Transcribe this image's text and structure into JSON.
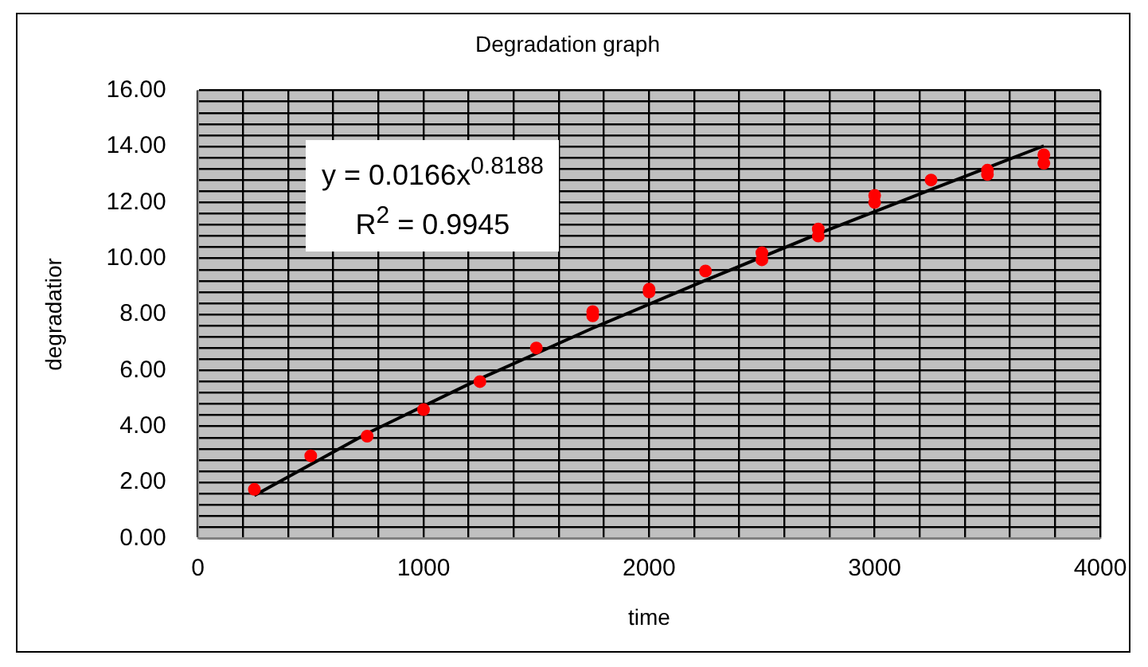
{
  "chart_data": {
    "type": "scatter",
    "title": "Degradation graph",
    "xlabel": "time",
    "ylabel": "degradatior",
    "series": [
      {
        "type": "scatter",
        "color": "#ff0000",
        "marker": "circle",
        "x": [
          250,
          500,
          750,
          1000,
          1250,
          1500,
          1750,
          1750,
          2000,
          2000,
          2250,
          2500,
          2500,
          2750,
          2750,
          3000,
          3000,
          3250,
          3500,
          3500,
          3750,
          3750
        ],
        "values": [
          1.75,
          2.95,
          3.65,
          4.6,
          5.6,
          6.8,
          7.95,
          8.1,
          8.8,
          8.9,
          9.55,
          9.95,
          10.2,
          10.8,
          11.05,
          12.0,
          12.25,
          12.8,
          13.0,
          13.15,
          13.4,
          13.7
        ]
      },
      {
        "type": "line",
        "color": "#000000",
        "marker": "none",
        "line_style": "solid",
        "x": [
          250,
          750,
          1250,
          1750,
          2250,
          2750,
          3250,
          3750
        ],
        "values": [
          1.53,
          3.75,
          5.7,
          7.51,
          9.22,
          10.88,
          12.46,
          14.02
        ]
      }
    ],
    "annotations": [
      "y = 0.0166x$^{0.8188}$",
      "R$^{2}$ = 0.9945"
    ],
    "xlim": [
      0,
      4000
    ],
    "xticks": [
      0,
      {
        "value": 200,
        "label": null
      },
      {
        "value": 400,
        "label": null
      },
      {
        "value": 600,
        "label": null
      },
      {
        "value": 800,
        "label": null
      },
      1000,
      {
        "value": 1200,
        "label": null
      },
      {
        "value": 1400,
        "label": null
      },
      {
        "value": 1600,
        "label": null
      },
      {
        "value": 1800,
        "label": null
      },
      2000,
      {
        "value": 2200,
        "label": null
      },
      {
        "value": 2400,
        "label": null
      },
      {
        "value": 2600,
        "label": null
      },
      {
        "value": 2800,
        "label": null
      },
      3000,
      {
        "value": 3200,
        "label": null
      },
      {
        "value": 3400,
        "label": null
      },
      {
        "value": 3600,
        "label": null
      },
      {
        "value": 3800,
        "label": null
      },
      4000
    ],
    "ylim": [
      0,
      16
    ],
    "yticks": [
      {
        "value": 0,
        "label": "0.00"
      },
      {
        "value": 0.4,
        "label": null
      },
      {
        "value": 0.8,
        "label": null
      },
      {
        "value": 1.2,
        "label": null
      },
      {
        "value": 1.6,
        "label": null
      },
      {
        "value": 2,
        "label": "2.00"
      },
      {
        "value": 2.4,
        "label": null
      },
      {
        "value": 2.8,
        "label": null
      },
      {
        "value": 3.2,
        "label": null
      },
      {
        "value": 3.6,
        "label": null
      },
      {
        "value": 4,
        "label": "4.00"
      },
      {
        "value": 4.4,
        "label": null
      },
      {
        "value": 4.8,
        "label": null
      },
      {
        "value": 5.2,
        "label": null
      },
      {
        "value": 5.6,
        "label": null
      },
      {
        "value": 6,
        "label": "6.00"
      },
      {
        "value": 6.4,
        "label": null
      },
      {
        "value": 6.8,
        "label": null
      },
      {
        "value": 7.2,
        "label": null
      },
      {
        "value": 7.6,
        "label": null
      },
      {
        "value": 8,
        "label": "8.00"
      },
      {
        "value": 8.4,
        "label": null
      },
      {
        "value": 8.8,
        "label": null
      },
      {
        "value": 9.2,
        "label": null
      },
      {
        "value": 9.6,
        "label": null
      },
      {
        "value": 10,
        "label": "10.00"
      },
      {
        "value": 10.4,
        "label": null
      },
      {
        "value": 10.8,
        "label": null
      },
      {
        "value": 11.2,
        "label": null
      },
      {
        "value": 11.6,
        "label": null
      },
      {
        "value": 12,
        "label": "12.00"
      },
      {
        "value": 12.4,
        "label": null
      },
      {
        "value": 12.8,
        "label": null
      },
      {
        "value": 13.2,
        "label": null
      },
      {
        "value": 13.6,
        "label": null
      },
      {
        "value": 14,
        "label": "14.00"
      },
      {
        "value": 14.4,
        "label": null
      },
      {
        "value": 14.8,
        "label": null
      },
      {
        "value": 15.2,
        "label": null
      },
      {
        "value": 15.6,
        "label": null
      },
      {
        "value": 16,
        "label": "16.00"
      }
    ],
    "grid": true,
    "legend": false
  }
}
